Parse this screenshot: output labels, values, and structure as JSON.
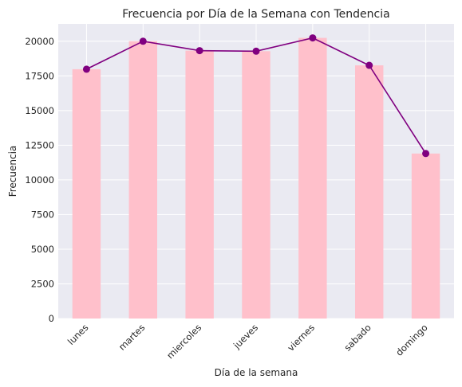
{
  "chart_data": {
    "type": "bar",
    "title": "Frecuencia por Día de la Semana con Tendencia",
    "xlabel": "Día de la semana",
    "ylabel": "Frecuencia",
    "categories": [
      "lunes",
      "martes",
      "miercoles",
      "jueves",
      "viernes",
      "sabado",
      "domingo"
    ],
    "series": [
      {
        "type": "bar",
        "values": [
          17980,
          20000,
          19320,
          19280,
          20240,
          18260,
          11900
        ],
        "color": "#ffc0cb"
      },
      {
        "type": "line",
        "values": [
          17980,
          20000,
          19320,
          19280,
          20240,
          18260,
          11900
        ],
        "color": "#800080",
        "marker": "circle"
      }
    ],
    "ylim": [
      0,
      21250
    ],
    "yticks": [
      0,
      2500,
      5000,
      7500,
      10000,
      12500,
      15000,
      17500,
      20000
    ],
    "ytick_labels": [
      "0",
      "2500",
      "5000",
      "7500",
      "10000",
      "12500",
      "15000",
      "17500",
      "20000"
    ],
    "xtick_rotation": 45,
    "grid": true,
    "background_color": "#eaeaf2",
    "grid_color": "#ffffff"
  }
}
